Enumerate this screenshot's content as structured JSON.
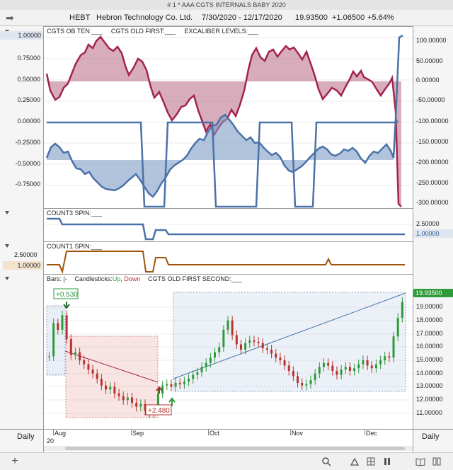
{
  "window": {
    "title": "# 1 * AAA  CGTS INTERNALS BABY 2020"
  },
  "quote": {
    "symbol": "HEBT",
    "company": "Hebron Technology Co. Ltd.",
    "date_range": "7/30/2020 - 12/17/2020",
    "last": "19.93500",
    "change": "+1.06500",
    "change_pct": "+5.64%"
  },
  "panel1": {
    "legend": [
      "CGTS OB TEN:___",
      "CGTS OLD FIRST:___",
      "EXCALIBER LEVELS:___"
    ],
    "left_badge": "1.00000",
    "left_ticks": [
      "0.75000",
      "0.50000",
      "0.25000",
      "0.00000",
      "-0.25000",
      "-0.50000",
      "-0.75000"
    ],
    "right_ticks": [
      "100.00000",
      "50.00000",
      "0.00000",
      "-50.00000",
      "-100.00000",
      "-150.00000",
      "-200.00000",
      "-250.00000",
      "-300.00000"
    ]
  },
  "panel2": {
    "legend": "COUNT3 SPIN:___",
    "right_tick": "2.50000",
    "right_badge": "1.00000"
  },
  "panel3": {
    "legend": "COUNT1 SPIN:___",
    "left_tick": "2.50000",
    "left_badge": "1.00000"
  },
  "panel4": {
    "legend_bars": "Bars:",
    "legend_candles": "Candlesticks:",
    "legend_up": "Up",
    "legend_down": "Down",
    "legend_series": "CGTS OLD FIRST SECOND:___",
    "last_badge": "19.93500",
    "ticks": [
      "19.00000",
      "18.00000",
      "17.00000",
      "16.00000",
      "15.00000",
      "14.00000",
      "13.00000",
      "12.00000",
      "11.00000"
    ],
    "annotation_up": "+0.530",
    "annotation_down": "+2.480"
  },
  "timeaxis": {
    "months": [
      "Aug",
      "Sep",
      "Oct",
      "Nov",
      "Dec"
    ],
    "year": "20",
    "left_period": "Daily",
    "right_period": "Daily"
  },
  "colors": {
    "crimson": "#a3234f",
    "crimson_fill": "#b86a84",
    "steel": "#4a72a8",
    "steel_fill": "#7d9cc4",
    "count1": "#a0540b",
    "up": "#2f9a3a",
    "down": "#b8322f"
  },
  "icons": [
    "forward-arrow-icon",
    "plus-icon",
    "search-icon",
    "drawing-icon",
    "grid-icon",
    "pause-icon",
    "book-icon",
    "columns-icon"
  ]
}
